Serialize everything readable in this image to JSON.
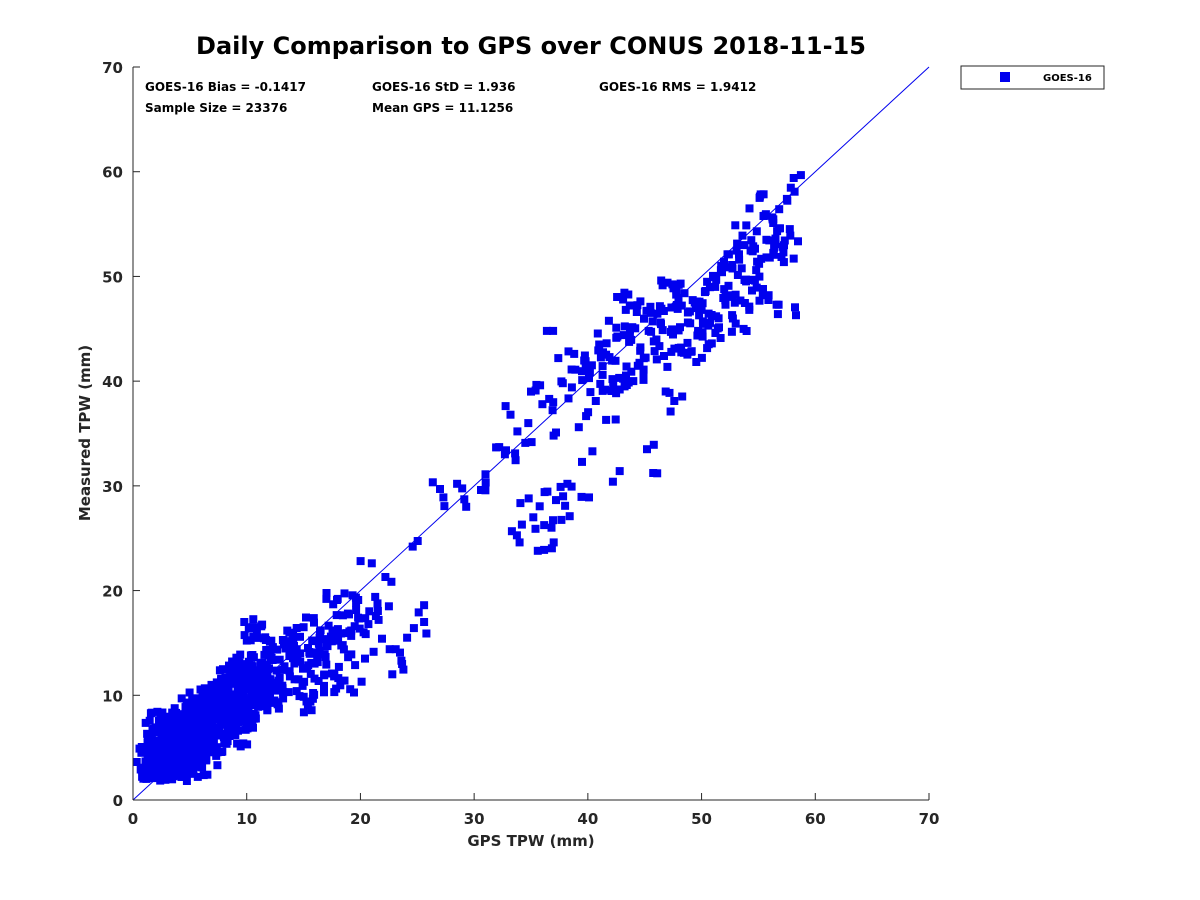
{
  "chart_data": {
    "type": "scatter",
    "title": "Daily Comparison to GPS over CONUS 2018-11-15",
    "xlabel": "GPS TPW (mm)",
    "ylabel": "Measured TPW (mm)",
    "xlim": [
      0,
      70
    ],
    "ylim": [
      0,
      70
    ],
    "xticks": [
      "0",
      "10",
      "20",
      "30",
      "40",
      "50",
      "60",
      "70"
    ],
    "yticks": [
      "0",
      "10",
      "20",
      "30",
      "40",
      "50",
      "60",
      "70"
    ],
    "grid": false,
    "legend": {
      "position": "outside-top-right",
      "entries": [
        "GOES-16"
      ]
    },
    "reference_line": {
      "label": "1:1",
      "from": [
        0,
        0
      ],
      "to": [
        70,
        70
      ]
    },
    "stats": {
      "bias": "GOES-16 Bias = -0.1417",
      "std": "GOES-16 StD = 1.936",
      "rms": "GOES-16 RMS = 1.9412",
      "sample_size": "Sample Size = 23376",
      "mean_gps": "Mean GPS = 11.1256"
    },
    "colors": {
      "series": "#0000ee",
      "axis": "#262626"
    },
    "series": [
      {
        "name": "GOES-16",
        "points": [
          [
            0.8,
            2.9
          ],
          [
            1.5,
            3.8
          ],
          [
            1.8,
            4.9
          ],
          [
            2.0,
            2.4
          ],
          [
            2.2,
            6.7
          ],
          [
            2.5,
            7.3
          ],
          [
            2.6,
            5.2
          ],
          [
            2.8,
            3.1
          ],
          [
            3.0,
            4.4
          ],
          [
            3.2,
            6.1
          ],
          [
            3.4,
            2.6
          ],
          [
            3.6,
            7.9
          ],
          [
            3.8,
            5.5
          ],
          [
            4.0,
            3.6
          ],
          [
            4.2,
            6.8
          ],
          [
            4.3,
            4.8
          ],
          [
            4.5,
            2.8
          ],
          [
            4.7,
            8.6
          ],
          [
            4.8,
            5.9
          ],
          [
            5.0,
            4.0
          ],
          [
            5.2,
            7.1
          ],
          [
            5.4,
            6.2
          ],
          [
            5.5,
            3.5
          ],
          [
            5.7,
            8.4
          ],
          [
            5.9,
            5.1
          ],
          [
            6.0,
            9.4
          ],
          [
            6.2,
            6.6
          ],
          [
            6.4,
            4.6
          ],
          [
            6.6,
            7.7
          ],
          [
            6.8,
            9.1
          ],
          [
            7.0,
            5.8
          ],
          [
            7.2,
            8.0
          ],
          [
            7.4,
            10.2
          ],
          [
            7.6,
            6.9
          ],
          [
            7.8,
            9.8
          ],
          [
            8.0,
            7.3
          ],
          [
            8.2,
            11.0
          ],
          [
            8.4,
            8.6
          ],
          [
            8.6,
            12.1
          ],
          [
            8.8,
            9.3
          ],
          [
            9.0,
            6.2
          ],
          [
            9.2,
            10.6
          ],
          [
            9.4,
            12.4
          ],
          [
            9.6,
            8.2
          ],
          [
            9.8,
            11.5
          ],
          [
            10.0,
            9.0
          ],
          [
            10.2,
            12.9
          ],
          [
            10.4,
            10.3
          ],
          [
            10.6,
            16.5
          ],
          [
            10.8,
            11.7
          ],
          [
            11.0,
            8.9
          ],
          [
            11.2,
            13.1
          ],
          [
            11.5,
            10.5
          ],
          [
            11.8,
            12.4
          ],
          [
            12.0,
            9.6
          ],
          [
            12.3,
            14.6
          ],
          [
            12.6,
            11.2
          ],
          [
            12.9,
            13.4
          ],
          [
            13.2,
            9.7
          ],
          [
            13.5,
            14.9
          ],
          [
            13.8,
            11.8
          ],
          [
            14.1,
            15.3
          ],
          [
            14.4,
            10.4
          ],
          [
            14.7,
            13.2
          ],
          [
            15.0,
            16.5
          ],
          [
            15.3,
            12.6
          ],
          [
            15.6,
            9.4
          ],
          [
            15.9,
            14.1
          ],
          [
            16.2,
            13.5
          ],
          [
            16.5,
            16.2
          ],
          [
            16.8,
            10.9
          ],
          [
            17.1,
            14.7
          ],
          [
            17.4,
            15.6
          ],
          [
            17.7,
            12.0
          ],
          [
            18.0,
            19.2
          ],
          [
            18.3,
            15.9
          ],
          [
            18.6,
            11.4
          ],
          [
            18.9,
            17.8
          ],
          [
            19.2,
            13.9
          ],
          [
            19.5,
            16.6
          ],
          [
            19.8,
            19.1
          ],
          [
            20.1,
            11.3
          ],
          [
            20.4,
            13.5
          ],
          [
            20.7,
            16.8
          ],
          [
            21.0,
            22.6
          ],
          [
            21.3,
            19.4
          ],
          [
            21.6,
            17.2
          ],
          [
            21.9,
            15.4
          ],
          [
            22.2,
            21.3
          ],
          [
            22.5,
            18.5
          ],
          [
            22.8,
            12.0
          ],
          [
            23.1,
            14.4
          ],
          [
            23.6,
            13.3
          ],
          [
            24.1,
            15.5
          ],
          [
            24.6,
            24.2
          ],
          [
            25.6,
            18.6
          ],
          [
            25.6,
            17.0
          ],
          [
            27.0,
            29.7
          ],
          [
            27.3,
            28.9
          ],
          [
            28.5,
            30.2
          ],
          [
            29.3,
            28.0
          ],
          [
            30.6,
            29.6
          ],
          [
            31.0,
            31.1
          ],
          [
            32.2,
            33.7
          ],
          [
            32.8,
            33.4
          ],
          [
            33.2,
            36.8
          ],
          [
            33.6,
            33.1
          ],
          [
            33.8,
            35.2
          ],
          [
            34.0,
            24.6
          ],
          [
            34.2,
            26.3
          ],
          [
            34.5,
            34.1
          ],
          [
            34.8,
            28.8
          ],
          [
            35.0,
            39.0
          ],
          [
            35.2,
            27.0
          ],
          [
            35.4,
            25.9
          ],
          [
            35.6,
            23.8
          ],
          [
            35.8,
            39.6
          ],
          [
            36.0,
            37.8
          ],
          [
            36.2,
            29.4
          ],
          [
            36.4,
            44.8
          ],
          [
            36.6,
            38.3
          ],
          [
            36.8,
            26.0
          ],
          [
            37.0,
            24.6
          ],
          [
            37.2,
            35.1
          ],
          [
            37.4,
            42.2
          ],
          [
            37.6,
            29.9
          ],
          [
            37.8,
            39.8
          ],
          [
            38.0,
            28.1
          ],
          [
            38.2,
            30.2
          ],
          [
            38.4,
            27.1
          ],
          [
            38.6,
            39.4
          ],
          [
            38.8,
            42.6
          ],
          [
            39.2,
            35.6
          ],
          [
            39.5,
            40.1
          ],
          [
            39.8,
            41.9
          ],
          [
            40.1,
            28.9
          ],
          [
            40.4,
            33.3
          ],
          [
            40.7,
            38.1
          ],
          [
            41.0,
            43.5
          ],
          [
            41.3,
            40.6
          ],
          [
            41.6,
            36.3
          ],
          [
            41.9,
            42.3
          ],
          [
            42.2,
            30.4
          ],
          [
            42.5,
            45.1
          ],
          [
            42.8,
            39.2
          ],
          [
            43.1,
            47.8
          ],
          [
            43.4,
            41.4
          ],
          [
            43.7,
            44.3
          ],
          [
            44.0,
            40.0
          ],
          [
            44.3,
            46.6
          ],
          [
            44.6,
            42.9
          ],
          [
            44.9,
            41.1
          ],
          [
            45.2,
            33.5
          ],
          [
            45.5,
            47.1
          ],
          [
            45.8,
            43.8
          ],
          [
            46.1,
            31.2
          ],
          [
            46.4,
            45.6
          ],
          [
            46.7,
            42.4
          ],
          [
            47.0,
            49.4
          ],
          [
            47.3,
            44.7
          ],
          [
            47.6,
            38.1
          ],
          [
            47.9,
            46.9
          ],
          [
            48.2,
            43.2
          ],
          [
            48.5,
            48.4
          ],
          [
            48.8,
            45.6
          ],
          [
            49.1,
            42.8
          ],
          [
            49.4,
            47.5
          ],
          [
            49.7,
            44.5
          ],
          [
            50.0,
            46.8
          ],
          [
            50.3,
            48.5
          ],
          [
            50.6,
            45.3
          ],
          [
            50.9,
            43.6
          ],
          [
            51.2,
            49.0
          ],
          [
            51.5,
            46.0
          ],
          [
            51.8,
            50.4
          ],
          [
            52.1,
            47.3
          ],
          [
            52.4,
            52.1
          ],
          [
            52.7,
            48.2
          ],
          [
            53.0,
            45.5
          ],
          [
            53.3,
            51.6
          ],
          [
            53.6,
            53.9
          ],
          [
            53.9,
            49.7
          ],
          [
            54.2,
            46.8
          ],
          [
            54.5,
            52.4
          ],
          [
            54.8,
            50.6
          ],
          [
            55.1,
            57.5
          ],
          [
            55.4,
            48.8
          ],
          [
            55.7,
            53.5
          ],
          [
            56.0,
            51.8
          ],
          [
            56.3,
            55.1
          ],
          [
            56.6,
            47.3
          ],
          [
            56.9,
            54.6
          ],
          [
            57.2,
            52.3
          ],
          [
            57.5,
            57.4
          ],
          [
            57.8,
            53.9
          ],
          [
            58.1,
            59.4
          ],
          [
            58.3,
            46.3
          ]
        ]
      }
    ]
  }
}
